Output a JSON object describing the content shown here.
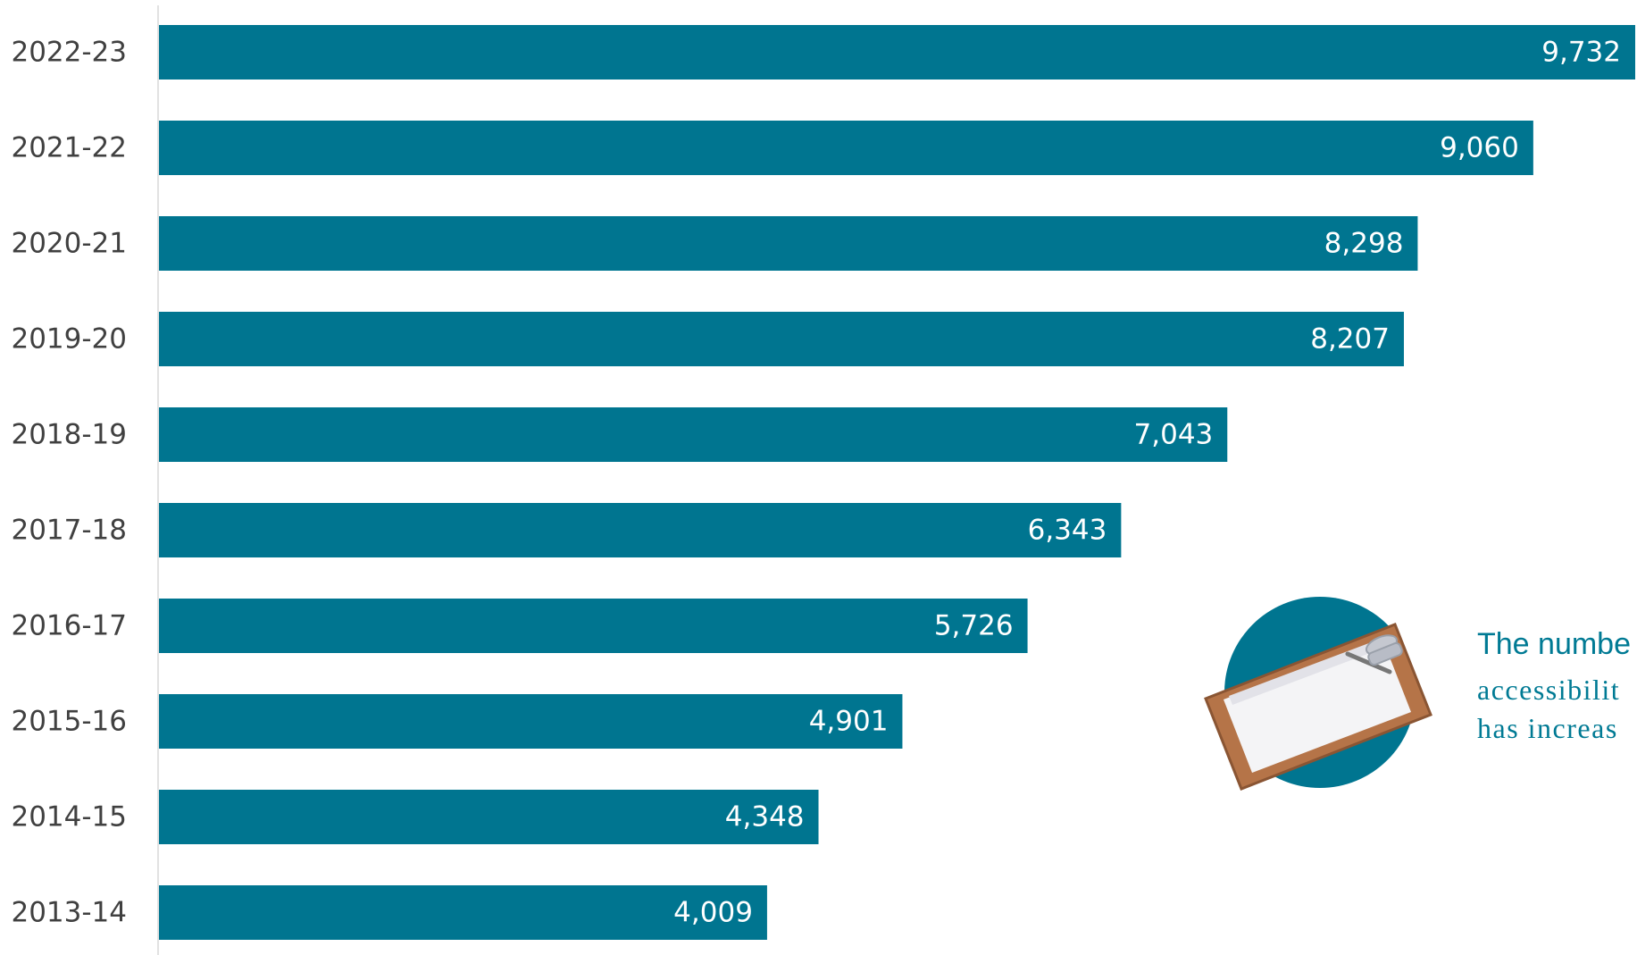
{
  "chart_data": {
    "type": "bar",
    "orientation": "horizontal",
    "categories": [
      "2022-23",
      "2021-22",
      "2020-21",
      "2019-20",
      "2018-19",
      "2017-18",
      "2016-17",
      "2015-16",
      "2014-15",
      "2013-14"
    ],
    "values": [
      9732,
      9060,
      8298,
      8207,
      7043,
      6343,
      5726,
      4901,
      4348,
      4009
    ],
    "value_labels": [
      "9,732",
      "9,060",
      "8,298",
      "8,207",
      "7,043",
      "6,343",
      "5,726",
      "4,901",
      "4,348",
      "4,009"
    ],
    "title": "",
    "xlabel": "",
    "ylabel": "",
    "xlim": [
      0,
      9732
    ],
    "grid": false,
    "legend": "none",
    "bar_color": "#007590"
  },
  "callout": {
    "icon": "clipboard-icon",
    "circle_color": "#007590",
    "text_color": "#007a94",
    "lines": [
      "The numbe",
      "accessibilit",
      "has increas"
    ]
  }
}
